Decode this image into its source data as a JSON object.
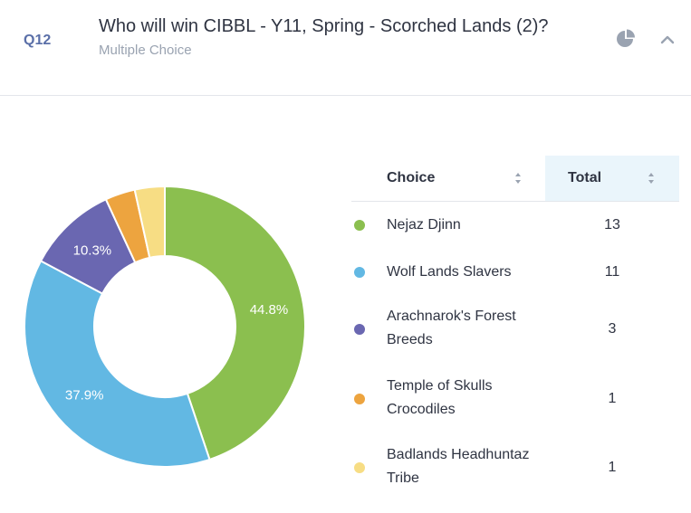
{
  "question": {
    "number": "Q12",
    "title": "Who will win CIBBL - Y11, Spring - Scorched Lands (2)?",
    "type": "Multiple Choice"
  },
  "icons": {
    "chart_toggle": "pie-chart-icon",
    "collapse": "chevron-up-icon"
  },
  "table": {
    "headers": {
      "choice": "Choice",
      "total": "Total"
    },
    "rows": [
      {
        "label": "Nejaz Djinn",
        "total": "13",
        "color": "#8bbf4f"
      },
      {
        "label": "Wolf Lands Slavers",
        "total": "11",
        "color": "#62b8e3"
      },
      {
        "label": "Arachnarok's Forest Breeds",
        "total": "3",
        "color": "#6a67b1"
      },
      {
        "label": "Temple of Skulls Crocodiles",
        "total": "1",
        "color": "#eda43f"
      },
      {
        "label": "Badlands Headhuntaz Tribe",
        "total": "1",
        "color": "#f7dd84"
      }
    ]
  },
  "chart_data": {
    "type": "pie",
    "labels": [
      "Nejaz Djinn",
      "Wolf Lands Slavers",
      "Arachnarok's Forest Breeds",
      "Temple of Skulls Crocodiles",
      "Badlands Headhuntaz Tribe"
    ],
    "values": [
      13,
      11,
      3,
      1,
      1
    ],
    "data_labels": [
      "44.8%",
      "37.9%",
      "10.3%",
      "",
      ""
    ],
    "colors": [
      "#8bbf4f",
      "#62b8e3",
      "#6a67b1",
      "#eda43f",
      "#f7dd84"
    ],
    "donut": true
  }
}
